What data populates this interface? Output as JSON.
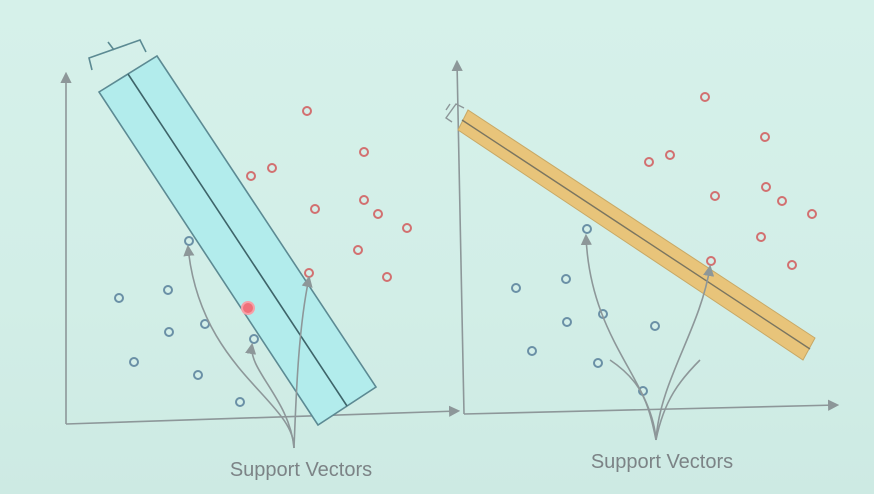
{
  "colors": {
    "background": "#d4efe9",
    "axis": "#8d9799",
    "blue_point": "#6a90a6",
    "red_point": "#d27070",
    "wide_margin_fill": "#b2ecec",
    "wide_margin_stroke": "#5c8a93",
    "narrow_margin_fill": "#e8c47a",
    "narrow_margin_stroke": "#8a7a55",
    "arrow": "#8d9799",
    "highlight_point": "#f0707a"
  },
  "left_panel": {
    "caption": "Support Vectors",
    "margin": "wide",
    "highlighted_point": true
  },
  "right_panel": {
    "caption": "Support Vectors",
    "margin": "narrow",
    "highlighted_point": false
  }
}
